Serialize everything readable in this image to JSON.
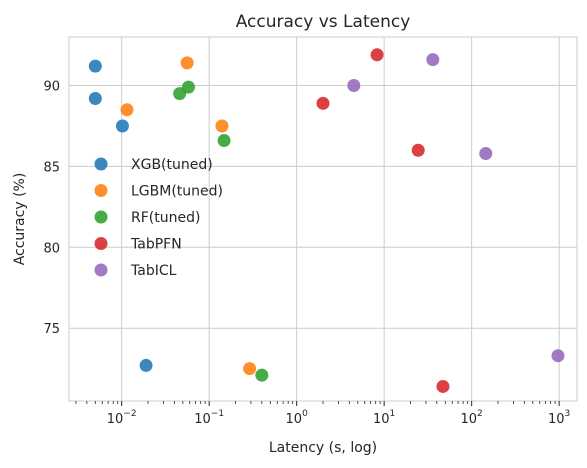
{
  "chart_data": {
    "type": "scatter",
    "title": "Accuracy vs Latency",
    "xlabel": "Latency (s, log)",
    "ylabel": "Accuracy (%)",
    "xscale": "log",
    "xlim": [
      0.0025,
      1600
    ],
    "ylim": [
      70.5,
      93.0
    ],
    "xticks": [
      {
        "value": 0.01,
        "base": "10",
        "exp": "−2"
      },
      {
        "value": 0.1,
        "base": "10",
        "exp": "−1"
      },
      {
        "value": 1,
        "base": "10",
        "exp": "0"
      },
      {
        "value": 10,
        "base": "10",
        "exp": "1"
      },
      {
        "value": 100,
        "base": "10",
        "exp": "2"
      },
      {
        "value": 1000,
        "base": "10",
        "exp": "3"
      }
    ],
    "yticks": [
      75,
      80,
      85,
      90
    ],
    "grid": true,
    "legend_position": "center-left",
    "series": [
      {
        "name": "XGB(tuned)",
        "color": "#1f77b4",
        "points": [
          [
            0.005,
            91.2
          ],
          [
            0.005,
            89.2
          ],
          [
            0.0102,
            87.5
          ],
          [
            0.019,
            72.7
          ]
        ]
      },
      {
        "name": "LGBM(tuned)",
        "color": "#ff7f0e",
        "points": [
          [
            0.0115,
            88.5
          ],
          [
            0.056,
            91.4
          ],
          [
            0.14,
            87.5
          ],
          [
            0.29,
            72.5
          ]
        ]
      },
      {
        "name": "RF(tuned)",
        "color": "#2ca02c",
        "points": [
          [
            0.046,
            89.5
          ],
          [
            0.058,
            89.9
          ],
          [
            0.148,
            86.6
          ],
          [
            0.4,
            72.1
          ]
        ]
      },
      {
        "name": "TabPFN",
        "color": "#d62728",
        "points": [
          [
            2.0,
            88.9
          ],
          [
            8.3,
            91.9
          ],
          [
            24.5,
            86.0
          ],
          [
            47,
            71.4
          ]
        ]
      },
      {
        "name": "TabICL",
        "color": "#9467bd",
        "points": [
          [
            4.5,
            90.0
          ],
          [
            36,
            91.6
          ],
          [
            145,
            85.8
          ],
          [
            970,
            73.3
          ]
        ]
      }
    ]
  }
}
